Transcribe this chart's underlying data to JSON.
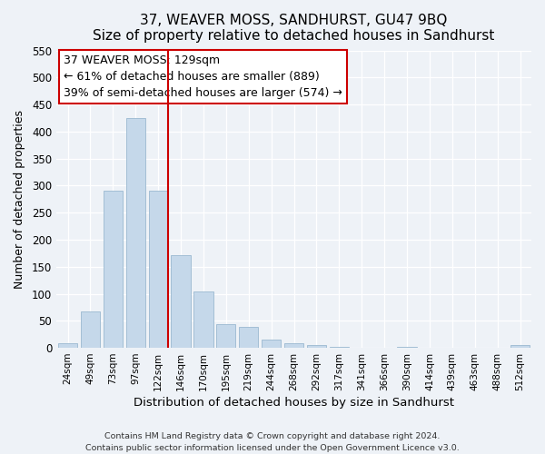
{
  "title": "37, WEAVER MOSS, SANDHURST, GU47 9BQ",
  "subtitle": "Size of property relative to detached houses in Sandhurst",
  "xlabel": "Distribution of detached houses by size in Sandhurst",
  "ylabel": "Number of detached properties",
  "bar_labels": [
    "24sqm",
    "49sqm",
    "73sqm",
    "97sqm",
    "122sqm",
    "146sqm",
    "170sqm",
    "195sqm",
    "219sqm",
    "244sqm",
    "268sqm",
    "292sqm",
    "317sqm",
    "341sqm",
    "366sqm",
    "390sqm",
    "414sqm",
    "439sqm",
    "463sqm",
    "488sqm",
    "512sqm"
  ],
  "bar_heights": [
    8,
    68,
    291,
    425,
    291,
    172,
    105,
    43,
    38,
    15,
    8,
    5,
    2,
    0,
    0,
    2,
    0,
    0,
    0,
    0,
    5
  ],
  "bar_color": "#c5d8ea",
  "bar_edgecolor": "#9ab8d0",
  "vline_x_idx": 4,
  "vline_color": "#cc0000",
  "annotation_title": "37 WEAVER MOSS: 129sqm",
  "annotation_line1": "← 61% of detached houses are smaller (889)",
  "annotation_line2": "39% of semi-detached houses are larger (574) →",
  "annotation_box_edgecolor": "#cc0000",
  "ylim": [
    0,
    550
  ],
  "yticks": [
    0,
    50,
    100,
    150,
    200,
    250,
    300,
    350,
    400,
    450,
    500,
    550
  ],
  "footer1": "Contains HM Land Registry data © Crown copyright and database right 2024.",
  "footer2": "Contains public sector information licensed under the Open Government Licence v3.0.",
  "bg_color": "#eef2f7",
  "plot_bg_color": "#eef2f7"
}
